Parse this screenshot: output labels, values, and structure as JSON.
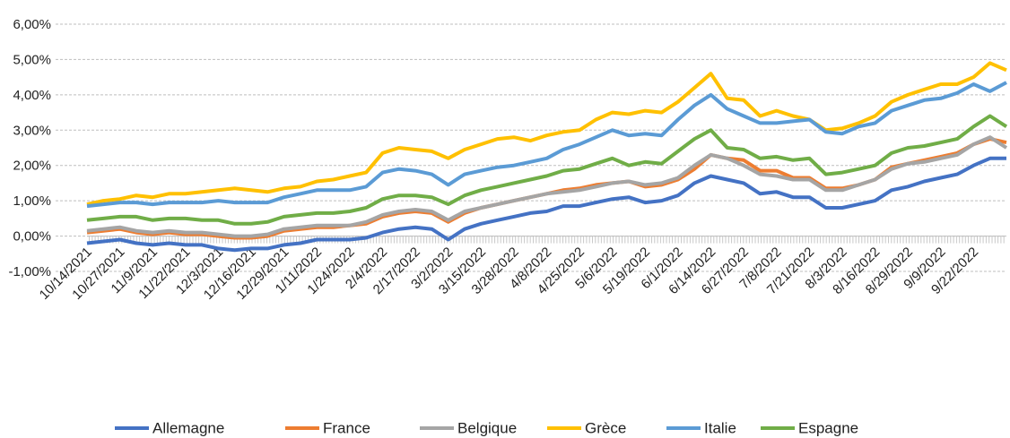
{
  "chart_data": {
    "type": "line",
    "categories": [
      "10/14/2021",
      null,
      "10/27/2021",
      null,
      "11/9/2021",
      null,
      "11/22/2021",
      null,
      "12/3/2021",
      null,
      "12/16/2021",
      null,
      "12/29/2021",
      null,
      "1/11/2022",
      null,
      "1/24/2022",
      null,
      "2/4/2022",
      null,
      "2/17/2022",
      null,
      "3/2/2022",
      null,
      "3/15/2022",
      null,
      "3/28/2022",
      null,
      "4/8/2022",
      null,
      "4/25/2022",
      null,
      "5/6/2022",
      null,
      "5/19/2022",
      null,
      "6/1/2022",
      null,
      "6/14/2022",
      null,
      "6/27/2022",
      null,
      "7/8/2022",
      null,
      "7/21/2022",
      null,
      "8/3/2022",
      null,
      "8/16/2022",
      null,
      "8/29/2022",
      null,
      "9/9/2022",
      null,
      "9/22/2022",
      null,
      null
    ],
    "series": [
      {
        "name": "Allemagne",
        "color": "#4472C4",
        "values": [
          -0.2,
          -0.15,
          -0.1,
          -0.2,
          -0.25,
          -0.2,
          -0.25,
          -0.25,
          -0.35,
          -0.4,
          -0.35,
          -0.35,
          -0.25,
          -0.2,
          -0.1,
          -0.1,
          -0.1,
          -0.05,
          0.1,
          0.2,
          0.25,
          0.2,
          -0.1,
          0.2,
          0.35,
          0.45,
          0.55,
          0.65,
          0.7,
          0.85,
          0.85,
          0.95,
          1.05,
          1.1,
          0.95,
          1.0,
          1.15,
          1.5,
          1.7,
          1.6,
          1.5,
          1.2,
          1.25,
          1.1,
          1.1,
          0.8,
          0.8,
          0.9,
          1.0,
          1.3,
          1.4,
          1.55,
          1.65,
          1.75,
          2.0,
          2.2,
          2.2
        ]
      },
      {
        "name": "France",
        "color": "#ED7D31",
        "values": [
          0.1,
          0.15,
          0.2,
          0.1,
          0.05,
          0.1,
          0.05,
          0.05,
          0.0,
          -0.05,
          -0.05,
          0.0,
          0.15,
          0.2,
          0.25,
          0.25,
          0.3,
          0.35,
          0.55,
          0.65,
          0.7,
          0.65,
          0.4,
          0.65,
          0.8,
          0.9,
          1.0,
          1.1,
          1.2,
          1.3,
          1.35,
          1.45,
          1.5,
          1.55,
          1.4,
          1.45,
          1.6,
          1.9,
          2.3,
          2.2,
          2.15,
          1.85,
          1.85,
          1.65,
          1.65,
          1.35,
          1.35,
          1.45,
          1.6,
          1.95,
          2.05,
          2.15,
          2.25,
          2.35,
          2.6,
          2.75,
          2.65
        ]
      },
      {
        "name": "Belgique",
        "color": "#A5A5A5",
        "values": [
          0.15,
          0.2,
          0.25,
          0.15,
          0.1,
          0.15,
          0.1,
          0.1,
          0.05,
          0.0,
          0.0,
          0.05,
          0.2,
          0.25,
          0.3,
          0.3,
          0.3,
          0.4,
          0.6,
          0.7,
          0.75,
          0.7,
          0.45,
          0.7,
          0.8,
          0.9,
          1.0,
          1.1,
          1.2,
          1.25,
          1.3,
          1.4,
          1.5,
          1.55,
          1.45,
          1.5,
          1.65,
          2.0,
          2.3,
          2.2,
          2.0,
          1.75,
          1.7,
          1.6,
          1.6,
          1.3,
          1.3,
          1.45,
          1.6,
          1.9,
          2.05,
          2.1,
          2.2,
          2.3,
          2.6,
          2.8,
          2.5
        ]
      },
      {
        "name": "Grèce",
        "color": "#FFC000",
        "values": [
          0.9,
          1.0,
          1.05,
          1.15,
          1.1,
          1.2,
          1.2,
          1.25,
          1.3,
          1.35,
          1.3,
          1.25,
          1.35,
          1.4,
          1.55,
          1.6,
          1.7,
          1.8,
          2.35,
          2.5,
          2.45,
          2.4,
          2.2,
          2.45,
          2.6,
          2.75,
          2.8,
          2.7,
          2.85,
          2.95,
          3.0,
          3.3,
          3.5,
          3.45,
          3.55,
          3.5,
          3.8,
          4.2,
          4.6,
          3.9,
          3.85,
          3.4,
          3.55,
          3.4,
          3.3,
          3.0,
          3.05,
          3.2,
          3.4,
          3.8,
          4.0,
          4.15,
          4.3,
          4.3,
          4.5,
          4.9,
          4.7
        ]
      },
      {
        "name": "Italie",
        "color": "#5B9BD5",
        "values": [
          0.85,
          0.9,
          0.95,
          0.95,
          0.9,
          0.95,
          0.95,
          0.95,
          1.0,
          0.95,
          0.95,
          0.95,
          1.1,
          1.2,
          1.3,
          1.3,
          1.3,
          1.4,
          1.8,
          1.9,
          1.85,
          1.75,
          1.45,
          1.75,
          1.85,
          1.95,
          2.0,
          2.1,
          2.2,
          2.45,
          2.6,
          2.8,
          3.0,
          2.85,
          2.9,
          2.85,
          3.3,
          3.7,
          4.0,
          3.6,
          3.4,
          3.2,
          3.2,
          3.25,
          3.3,
          2.95,
          2.9,
          3.1,
          3.2,
          3.55,
          3.7,
          3.85,
          3.9,
          4.05,
          4.3,
          4.1,
          4.35
        ]
      },
      {
        "name": "Espagne",
        "color": "#70AD47",
        "values": [
          0.45,
          0.5,
          0.55,
          0.55,
          0.45,
          0.5,
          0.5,
          0.45,
          0.45,
          0.35,
          0.35,
          0.4,
          0.55,
          0.6,
          0.65,
          0.65,
          0.7,
          0.8,
          1.05,
          1.15,
          1.15,
          1.1,
          0.9,
          1.15,
          1.3,
          1.4,
          1.5,
          1.6,
          1.7,
          1.85,
          1.9,
          2.05,
          2.2,
          2.0,
          2.1,
          2.05,
          2.4,
          2.75,
          3.0,
          2.5,
          2.45,
          2.2,
          2.25,
          2.15,
          2.2,
          1.75,
          1.8,
          1.9,
          2.0,
          2.35,
          2.5,
          2.55,
          2.65,
          2.75,
          3.1,
          3.4,
          3.1
        ]
      }
    ],
    "ylim": [
      -1,
      6
    ],
    "yticks": [
      {
        "value": -1,
        "label": "-1,00%"
      },
      {
        "value": 0,
        "label": "0,00%"
      },
      {
        "value": 1,
        "label": "1,00%"
      },
      {
        "value": 2,
        "label": "2,00%"
      },
      {
        "value": 3,
        "label": "3,00%"
      },
      {
        "value": 4,
        "label": "4,00%"
      },
      {
        "value": 5,
        "label": "5,00%"
      },
      {
        "value": 6,
        "label": "6,00%"
      }
    ],
    "grid": true,
    "legend": "bottom"
  }
}
